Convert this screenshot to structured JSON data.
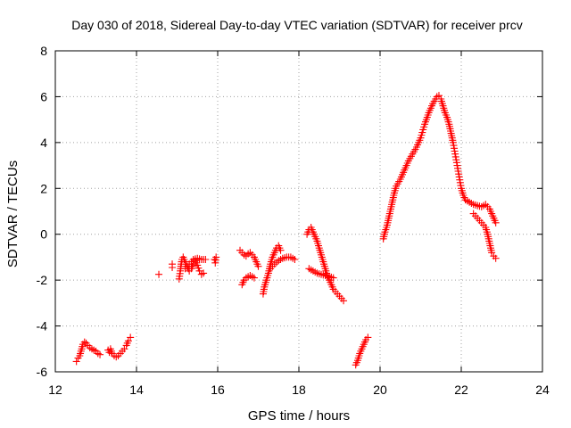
{
  "chart_data": {
    "type": "scatter",
    "title": "Day 030 of 2018, Sidereal Day-to-day VTEC variation (SDTVAR) for receiver prcv",
    "xlabel": "GPS time / hours",
    "ylabel": "SDTVAR / TECUs",
    "xlim": [
      12,
      24
    ],
    "ylim": [
      -6,
      8
    ],
    "xticks": [
      "12",
      "14",
      "16",
      "18",
      "20",
      "22",
      "24"
    ],
    "yticks": [
      "-6",
      "-4",
      "-2",
      "0",
      "2",
      "4",
      "6",
      "8"
    ],
    "grid": true,
    "marker": "plus",
    "color": "#ff0000",
    "segments": [
      [
        [
          12.52,
          -5.55
        ],
        [
          12.56,
          -5.4
        ],
        [
          12.6,
          -5.3
        ],
        [
          12.65,
          -5.0
        ],
        [
          12.68,
          -4.8
        ],
        [
          12.72,
          -4.7
        ],
        [
          12.76,
          -4.75
        ],
        [
          12.8,
          -4.85
        ],
        [
          12.85,
          -4.95
        ],
        [
          12.9,
          -5.0
        ],
        [
          12.95,
          -5.05
        ],
        [
          13.0,
          -5.1
        ],
        [
          13.05,
          -5.2
        ],
        [
          13.1,
          -5.25
        ]
      ],
      [
        [
          13.3,
          -5.05
        ],
        [
          13.33,
          -5.15
        ],
        [
          13.36,
          -5.0
        ],
        [
          13.4,
          -5.2
        ],
        [
          13.45,
          -5.3
        ],
        [
          13.5,
          -5.35
        ],
        [
          13.55,
          -5.3
        ],
        [
          13.6,
          -5.2
        ],
        [
          13.65,
          -5.1
        ],
        [
          13.7,
          -5.0
        ],
        [
          13.75,
          -4.85
        ],
        [
          13.8,
          -4.65
        ],
        [
          13.85,
          -4.5
        ]
      ],
      [
        [
          14.55,
          -1.75
        ]
      ],
      [
        [
          14.88,
          -1.45
        ],
        [
          14.88,
          -1.3
        ]
      ],
      [
        [
          15.05,
          -1.95
        ],
        [
          15.08,
          -1.6
        ],
        [
          15.1,
          -1.3
        ],
        [
          15.12,
          -1.1
        ],
        [
          15.15,
          -1.0
        ],
        [
          15.2,
          -1.2
        ],
        [
          15.25,
          -1.4
        ],
        [
          15.3,
          -1.6
        ],
        [
          15.35,
          -1.5
        ],
        [
          15.4,
          -1.3
        ],
        [
          15.45,
          -1.15
        ],
        [
          15.5,
          -1.35
        ],
        [
          15.55,
          -1.6
        ],
        [
          15.6,
          -1.75
        ],
        [
          15.65,
          -1.7
        ]
      ],
      [
        [
          15.2,
          -1.5
        ],
        [
          15.3,
          -1.3
        ],
        [
          15.4,
          -1.1
        ],
        [
          15.5,
          -1.05
        ],
        [
          15.6,
          -1.1
        ],
        [
          15.7,
          -1.1
        ]
      ],
      [
        [
          15.92,
          -1.1
        ],
        [
          15.94,
          -1.25
        ],
        [
          15.96,
          -1.0
        ]
      ],
      [
        [
          16.6,
          -2.2
        ],
        [
          16.65,
          -2.0
        ],
        [
          16.7,
          -1.9
        ],
        [
          16.75,
          -1.85
        ],
        [
          16.8,
          -1.8
        ],
        [
          16.85,
          -1.85
        ],
        [
          16.9,
          -1.9
        ]
      ],
      [
        [
          16.55,
          -0.7
        ],
        [
          16.6,
          -0.8
        ],
        [
          16.65,
          -0.9
        ],
        [
          16.7,
          -0.95
        ],
        [
          16.75,
          -0.85
        ],
        [
          16.8,
          -0.8
        ],
        [
          16.85,
          -0.9
        ],
        [
          16.9,
          -1.0
        ],
        [
          16.95,
          -1.2
        ],
        [
          17.0,
          -1.4
        ]
      ],
      [
        [
          17.12,
          -2.6
        ],
        [
          17.15,
          -2.3
        ],
        [
          17.2,
          -2.0
        ],
        [
          17.25,
          -1.7
        ],
        [
          17.3,
          -1.3
        ],
        [
          17.35,
          -1.0
        ],
        [
          17.4,
          -0.8
        ],
        [
          17.45,
          -0.6
        ],
        [
          17.5,
          -0.5
        ],
        [
          17.55,
          -0.7
        ]
      ],
      [
        [
          17.3,
          -1.5
        ],
        [
          17.4,
          -1.3
        ],
        [
          17.5,
          -1.15
        ],
        [
          17.6,
          -1.05
        ],
        [
          17.7,
          -1.0
        ],
        [
          17.8,
          -1.0
        ],
        [
          17.9,
          -1.1
        ]
      ],
      [
        [
          18.2,
          0.0
        ],
        [
          18.25,
          0.2
        ],
        [
          18.3,
          0.3
        ],
        [
          18.35,
          0.1
        ],
        [
          18.4,
          -0.1
        ],
        [
          18.45,
          -0.3
        ],
        [
          18.5,
          -0.6
        ],
        [
          18.55,
          -0.9
        ],
        [
          18.6,
          -1.2
        ],
        [
          18.65,
          -1.5
        ],
        [
          18.7,
          -1.8
        ],
        [
          18.75,
          -2.0
        ],
        [
          18.8,
          -2.2
        ],
        [
          18.85,
          -2.4
        ],
        [
          18.9,
          -2.5
        ],
        [
          18.95,
          -2.6
        ],
        [
          19.0,
          -2.7
        ],
        [
          19.05,
          -2.8
        ],
        [
          19.1,
          -2.9
        ]
      ],
      [
        [
          18.25,
          -1.5
        ],
        [
          18.35,
          -1.6
        ],
        [
          18.45,
          -1.7
        ],
        [
          18.55,
          -1.75
        ],
        [
          18.65,
          -1.8
        ],
        [
          18.75,
          -1.85
        ],
        [
          18.85,
          -1.9
        ]
      ],
      [
        [
          19.4,
          -5.7
        ],
        [
          19.45,
          -5.5
        ],
        [
          19.5,
          -5.2
        ],
        [
          19.55,
          -5.0
        ],
        [
          19.6,
          -4.8
        ],
        [
          19.65,
          -4.6
        ],
        [
          19.7,
          -4.5
        ]
      ],
      [
        [
          20.08,
          -0.2
        ],
        [
          20.12,
          0.1
        ],
        [
          20.16,
          0.3
        ],
        [
          20.2,
          0.6
        ],
        [
          20.25,
          1.0
        ],
        [
          20.3,
          1.4
        ],
        [
          20.35,
          1.8
        ],
        [
          20.4,
          2.1
        ],
        [
          20.5,
          2.4
        ],
        [
          20.6,
          2.8
        ],
        [
          20.7,
          3.2
        ],
        [
          20.8,
          3.5
        ],
        [
          20.9,
          3.8
        ],
        [
          21.0,
          4.2
        ],
        [
          21.1,
          4.8
        ],
        [
          21.2,
          5.3
        ],
        [
          21.3,
          5.7
        ],
        [
          21.4,
          6.0
        ],
        [
          21.45,
          6.05
        ],
        [
          21.5,
          5.9
        ],
        [
          21.55,
          5.6
        ],
        [
          21.6,
          5.3
        ],
        [
          21.65,
          5.1
        ],
        [
          21.7,
          4.8
        ],
        [
          21.75,
          4.4
        ],
        [
          21.8,
          4.0
        ],
        [
          21.85,
          3.5
        ],
        [
          21.9,
          3.0
        ],
        [
          21.95,
          2.5
        ],
        [
          22.0,
          2.0
        ],
        [
          22.05,
          1.7
        ],
        [
          22.1,
          1.5
        ],
        [
          22.2,
          1.4
        ],
        [
          22.3,
          1.3
        ],
        [
          22.4,
          1.25
        ],
        [
          22.5,
          1.2
        ],
        [
          22.6,
          1.3
        ],
        [
          22.7,
          1.1
        ],
        [
          22.75,
          0.9
        ],
        [
          22.8,
          0.7
        ],
        [
          22.85,
          0.5
        ]
      ],
      [
        [
          22.3,
          0.9
        ],
        [
          22.4,
          0.7
        ],
        [
          22.5,
          0.5
        ],
        [
          22.6,
          0.3
        ],
        [
          22.65,
          0.0
        ],
        [
          22.7,
          -0.4
        ],
        [
          22.75,
          -0.8
        ],
        [
          22.8,
          -0.95
        ],
        [
          22.85,
          -1.05
        ]
      ]
    ]
  }
}
